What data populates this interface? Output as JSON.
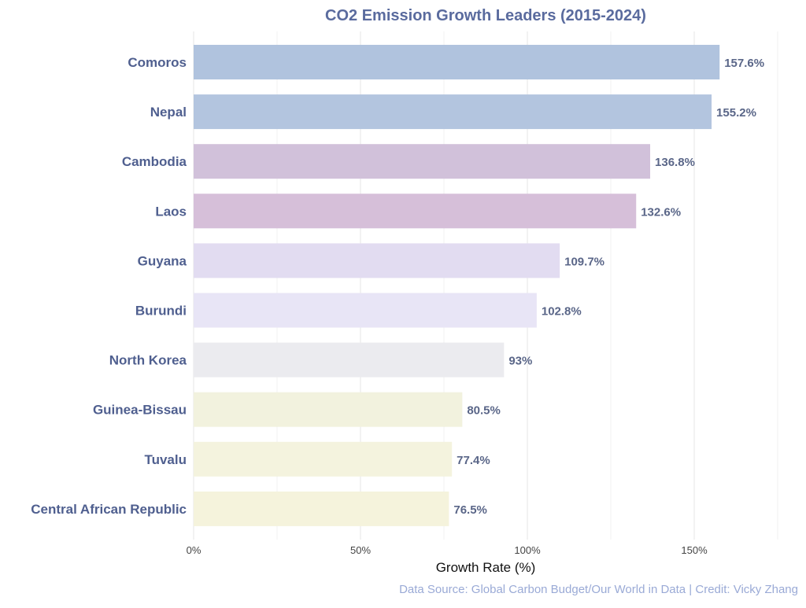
{
  "chart_data": {
    "type": "bar",
    "orientation": "horizontal",
    "title": "CO2 Emission Growth Leaders (2015-2024)",
    "xlabel": "Growth Rate (%)",
    "ylabel": "",
    "caption": "Data Source: Global Carbon Budget/Our World in Data | Credit: Vicky Zhang",
    "xlim": [
      0,
      175
    ],
    "xticks": [
      0,
      50,
      100,
      150
    ],
    "xtick_labels": [
      "0%",
      "50%",
      "100%",
      "150%"
    ],
    "grid": true,
    "categories": [
      "Comoros",
      "Nepal",
      "Cambodia",
      "Laos",
      "Guyana",
      "Burundi",
      "North Korea",
      "Guinea-Bissau",
      "Tuvalu",
      "Central African Republic"
    ],
    "values": [
      157.6,
      155.2,
      136.8,
      132.6,
      109.7,
      102.8,
      93,
      80.5,
      77.4,
      76.5
    ],
    "data_labels": [
      "157.6%",
      "155.2%",
      "136.8%",
      "132.6%",
      "109.7%",
      "102.8%",
      "93%",
      "80.5%",
      "77.4%",
      "76.5%"
    ],
    "colors": [
      "#b0c3de",
      "#b3c5df",
      "#d1c1da",
      "#d6bfd9",
      "#e2dcf1",
      "#e8e5f6",
      "#ebebef",
      "#f2f2de",
      "#f4f3de",
      "#f5f3dc"
    ],
    "label_color": "#4f5f8f",
    "value_label_color": "#5a6688",
    "caption_color": "#9aaad6"
  }
}
